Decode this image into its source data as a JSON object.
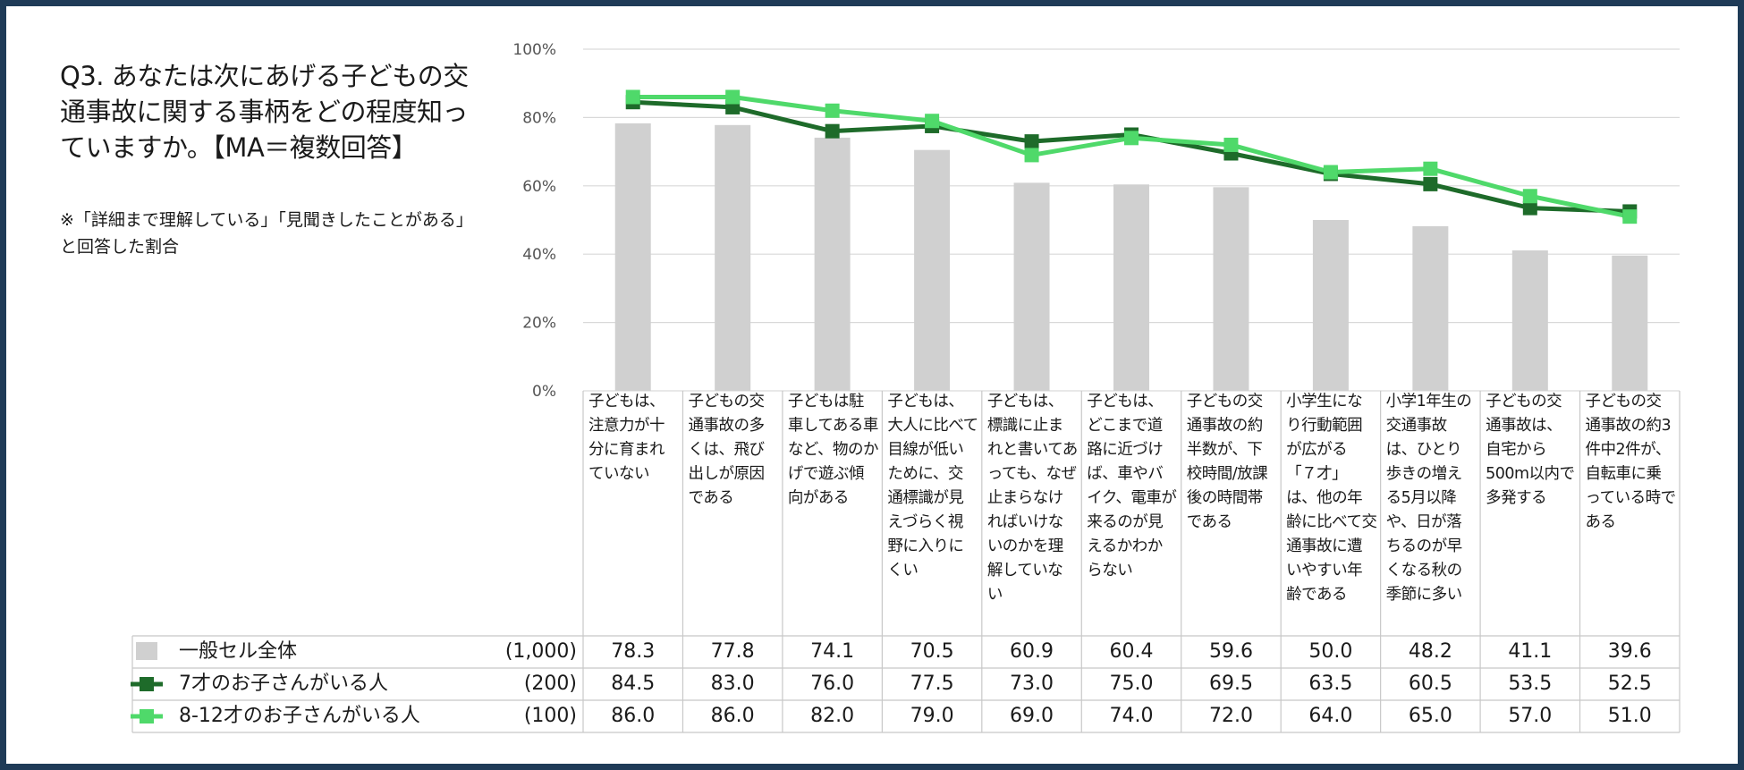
{
  "question": "Q3. あなたは次にあげる子どもの交通事故に関する事柄をどの程度知っていますか。【MA＝複数回答】",
  "note": "※「詳細まで理解している」「見聞きしたことがある」と回答した割合",
  "colors": {
    "frame": "#1f3b57",
    "general": "#d0d0d0",
    "age7": "#1e6b2a",
    "age8_12": "#4fd96a",
    "grid": "#d9d9d9"
  },
  "chart_data": {
    "type": "bar",
    "yticks": [
      "0%",
      "20%",
      "40%",
      "60%",
      "80%",
      "100%"
    ],
    "ylim": [
      0,
      100
    ],
    "categories": [
      "子どもは、注意力が十分に育まれていない",
      "子どもの交通事故の多くは、飛び出しが原因である",
      "子どもは駐車してある車など、物のかげで遊ぶ傾向がある",
      "子どもは、大人に比べて目線が低いために、交通標識が見えづらく視野に入りにくい",
      "子どもは、標識に止まれと書いてあっても、なぜ止まらなければいけないのかを理解していない",
      "子どもは、どこまで道路に近づけば、車やバイク、電車が来るのが見えるかわからない",
      "子どもの交通事故の約半数が、下校時間/放課後の時間帯である",
      "小学生になり行動範囲が広がる「７才」は、他の年齢に比べて交通事故に遭いやすい年齢である",
      "小学1年生の交通事故は、ひとり歩きの増える5月以降や、日が落ちるのが早くなる秋の季節に多い",
      "子どもの交通事故は、自宅から500m以内で多発する",
      "子どもの交通事故の約3件中2件が、自転車に乗っている時である"
    ],
    "series": [
      {
        "name": "一般セル全体",
        "n": "(1,000)",
        "kind": "bar",
        "values": [
          78.3,
          77.8,
          74.1,
          70.5,
          60.9,
          60.4,
          59.6,
          50.0,
          48.2,
          41.1,
          39.6
        ],
        "labels": [
          "78.3",
          "77.8",
          "74.1",
          "70.5",
          "60.9",
          "60.4",
          "59.6",
          "50.0",
          "48.2",
          "41.1",
          "39.6"
        ]
      },
      {
        "name": "7才のお子さんがいる人",
        "n": "(200)",
        "kind": "line",
        "values": [
          84.5,
          83.0,
          76.0,
          77.5,
          73.0,
          75.0,
          69.5,
          63.5,
          60.5,
          53.5,
          52.5
        ],
        "labels": [
          "84.5",
          "83.0",
          "76.0",
          "77.5",
          "73.0",
          "75.0",
          "69.5",
          "63.5",
          "60.5",
          "53.5",
          "52.5"
        ]
      },
      {
        "name": "8-12才のお子さんがいる人",
        "n": "(100)",
        "kind": "line",
        "values": [
          86.0,
          86.0,
          82.0,
          79.0,
          69.0,
          74.0,
          72.0,
          64.0,
          65.0,
          57.0,
          51.0
        ],
        "labels": [
          "86.0",
          "86.0",
          "82.0",
          "79.0",
          "69.0",
          "74.0",
          "72.0",
          "64.0",
          "65.0",
          "57.0",
          "51.0"
        ]
      }
    ]
  }
}
